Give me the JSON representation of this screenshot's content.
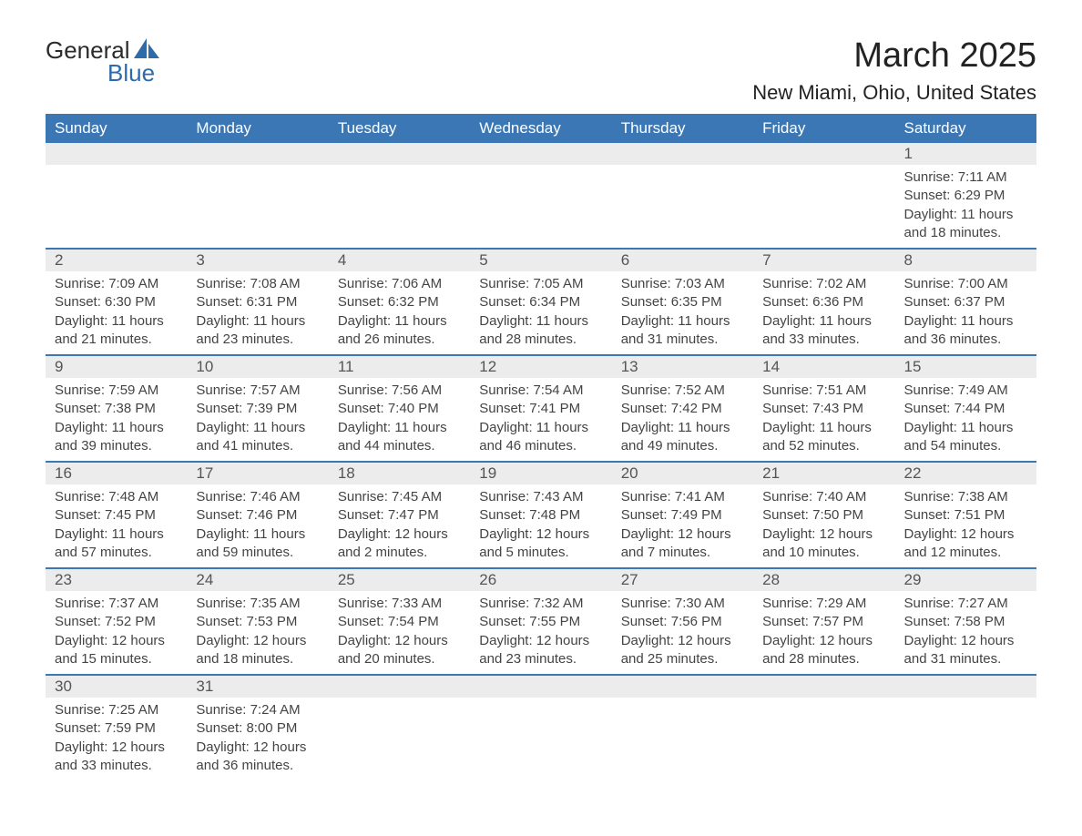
{
  "logo": {
    "text_general": "General",
    "text_blue": "Blue",
    "accent_color": "#2f6ba8"
  },
  "title": "March 2025",
  "location": "New Miami, Ohio, United States",
  "header_bg": "#3b77b5",
  "header_fg": "#ffffff",
  "daynum_bg": "#ececec",
  "border_color": "#3b77b5",
  "text_color": "#444444",
  "fonts": {
    "title_size_pt": 28,
    "location_size_pt": 17,
    "header_size_pt": 13,
    "body_size_pt": 11
  },
  "day_headers": [
    "Sunday",
    "Monday",
    "Tuesday",
    "Wednesday",
    "Thursday",
    "Friday",
    "Saturday"
  ],
  "weeks": [
    [
      null,
      null,
      null,
      null,
      null,
      null,
      {
        "n": "1",
        "sunrise": "Sunrise: 7:11 AM",
        "sunset": "Sunset: 6:29 PM",
        "daylight1": "Daylight: 11 hours",
        "daylight2": "and 18 minutes."
      }
    ],
    [
      {
        "n": "2",
        "sunrise": "Sunrise: 7:09 AM",
        "sunset": "Sunset: 6:30 PM",
        "daylight1": "Daylight: 11 hours",
        "daylight2": "and 21 minutes."
      },
      {
        "n": "3",
        "sunrise": "Sunrise: 7:08 AM",
        "sunset": "Sunset: 6:31 PM",
        "daylight1": "Daylight: 11 hours",
        "daylight2": "and 23 minutes."
      },
      {
        "n": "4",
        "sunrise": "Sunrise: 7:06 AM",
        "sunset": "Sunset: 6:32 PM",
        "daylight1": "Daylight: 11 hours",
        "daylight2": "and 26 minutes."
      },
      {
        "n": "5",
        "sunrise": "Sunrise: 7:05 AM",
        "sunset": "Sunset: 6:34 PM",
        "daylight1": "Daylight: 11 hours",
        "daylight2": "and 28 minutes."
      },
      {
        "n": "6",
        "sunrise": "Sunrise: 7:03 AM",
        "sunset": "Sunset: 6:35 PM",
        "daylight1": "Daylight: 11 hours",
        "daylight2": "and 31 minutes."
      },
      {
        "n": "7",
        "sunrise": "Sunrise: 7:02 AM",
        "sunset": "Sunset: 6:36 PM",
        "daylight1": "Daylight: 11 hours",
        "daylight2": "and 33 minutes."
      },
      {
        "n": "8",
        "sunrise": "Sunrise: 7:00 AM",
        "sunset": "Sunset: 6:37 PM",
        "daylight1": "Daylight: 11 hours",
        "daylight2": "and 36 minutes."
      }
    ],
    [
      {
        "n": "9",
        "sunrise": "Sunrise: 7:59 AM",
        "sunset": "Sunset: 7:38 PM",
        "daylight1": "Daylight: 11 hours",
        "daylight2": "and 39 minutes."
      },
      {
        "n": "10",
        "sunrise": "Sunrise: 7:57 AM",
        "sunset": "Sunset: 7:39 PM",
        "daylight1": "Daylight: 11 hours",
        "daylight2": "and 41 minutes."
      },
      {
        "n": "11",
        "sunrise": "Sunrise: 7:56 AM",
        "sunset": "Sunset: 7:40 PM",
        "daylight1": "Daylight: 11 hours",
        "daylight2": "and 44 minutes."
      },
      {
        "n": "12",
        "sunrise": "Sunrise: 7:54 AM",
        "sunset": "Sunset: 7:41 PM",
        "daylight1": "Daylight: 11 hours",
        "daylight2": "and 46 minutes."
      },
      {
        "n": "13",
        "sunrise": "Sunrise: 7:52 AM",
        "sunset": "Sunset: 7:42 PM",
        "daylight1": "Daylight: 11 hours",
        "daylight2": "and 49 minutes."
      },
      {
        "n": "14",
        "sunrise": "Sunrise: 7:51 AM",
        "sunset": "Sunset: 7:43 PM",
        "daylight1": "Daylight: 11 hours",
        "daylight2": "and 52 minutes."
      },
      {
        "n": "15",
        "sunrise": "Sunrise: 7:49 AM",
        "sunset": "Sunset: 7:44 PM",
        "daylight1": "Daylight: 11 hours",
        "daylight2": "and 54 minutes."
      }
    ],
    [
      {
        "n": "16",
        "sunrise": "Sunrise: 7:48 AM",
        "sunset": "Sunset: 7:45 PM",
        "daylight1": "Daylight: 11 hours",
        "daylight2": "and 57 minutes."
      },
      {
        "n": "17",
        "sunrise": "Sunrise: 7:46 AM",
        "sunset": "Sunset: 7:46 PM",
        "daylight1": "Daylight: 11 hours",
        "daylight2": "and 59 minutes."
      },
      {
        "n": "18",
        "sunrise": "Sunrise: 7:45 AM",
        "sunset": "Sunset: 7:47 PM",
        "daylight1": "Daylight: 12 hours",
        "daylight2": "and 2 minutes."
      },
      {
        "n": "19",
        "sunrise": "Sunrise: 7:43 AM",
        "sunset": "Sunset: 7:48 PM",
        "daylight1": "Daylight: 12 hours",
        "daylight2": "and 5 minutes."
      },
      {
        "n": "20",
        "sunrise": "Sunrise: 7:41 AM",
        "sunset": "Sunset: 7:49 PM",
        "daylight1": "Daylight: 12 hours",
        "daylight2": "and 7 minutes."
      },
      {
        "n": "21",
        "sunrise": "Sunrise: 7:40 AM",
        "sunset": "Sunset: 7:50 PM",
        "daylight1": "Daylight: 12 hours",
        "daylight2": "and 10 minutes."
      },
      {
        "n": "22",
        "sunrise": "Sunrise: 7:38 AM",
        "sunset": "Sunset: 7:51 PM",
        "daylight1": "Daylight: 12 hours",
        "daylight2": "and 12 minutes."
      }
    ],
    [
      {
        "n": "23",
        "sunrise": "Sunrise: 7:37 AM",
        "sunset": "Sunset: 7:52 PM",
        "daylight1": "Daylight: 12 hours",
        "daylight2": "and 15 minutes."
      },
      {
        "n": "24",
        "sunrise": "Sunrise: 7:35 AM",
        "sunset": "Sunset: 7:53 PM",
        "daylight1": "Daylight: 12 hours",
        "daylight2": "and 18 minutes."
      },
      {
        "n": "25",
        "sunrise": "Sunrise: 7:33 AM",
        "sunset": "Sunset: 7:54 PM",
        "daylight1": "Daylight: 12 hours",
        "daylight2": "and 20 minutes."
      },
      {
        "n": "26",
        "sunrise": "Sunrise: 7:32 AM",
        "sunset": "Sunset: 7:55 PM",
        "daylight1": "Daylight: 12 hours",
        "daylight2": "and 23 minutes."
      },
      {
        "n": "27",
        "sunrise": "Sunrise: 7:30 AM",
        "sunset": "Sunset: 7:56 PM",
        "daylight1": "Daylight: 12 hours",
        "daylight2": "and 25 minutes."
      },
      {
        "n": "28",
        "sunrise": "Sunrise: 7:29 AM",
        "sunset": "Sunset: 7:57 PM",
        "daylight1": "Daylight: 12 hours",
        "daylight2": "and 28 minutes."
      },
      {
        "n": "29",
        "sunrise": "Sunrise: 7:27 AM",
        "sunset": "Sunset: 7:58 PM",
        "daylight1": "Daylight: 12 hours",
        "daylight2": "and 31 minutes."
      }
    ],
    [
      {
        "n": "30",
        "sunrise": "Sunrise: 7:25 AM",
        "sunset": "Sunset: 7:59 PM",
        "daylight1": "Daylight: 12 hours",
        "daylight2": "and 33 minutes."
      },
      {
        "n": "31",
        "sunrise": "Sunrise: 7:24 AM",
        "sunset": "Sunset: 8:00 PM",
        "daylight1": "Daylight: 12 hours",
        "daylight2": "and 36 minutes."
      },
      null,
      null,
      null,
      null,
      null
    ]
  ]
}
